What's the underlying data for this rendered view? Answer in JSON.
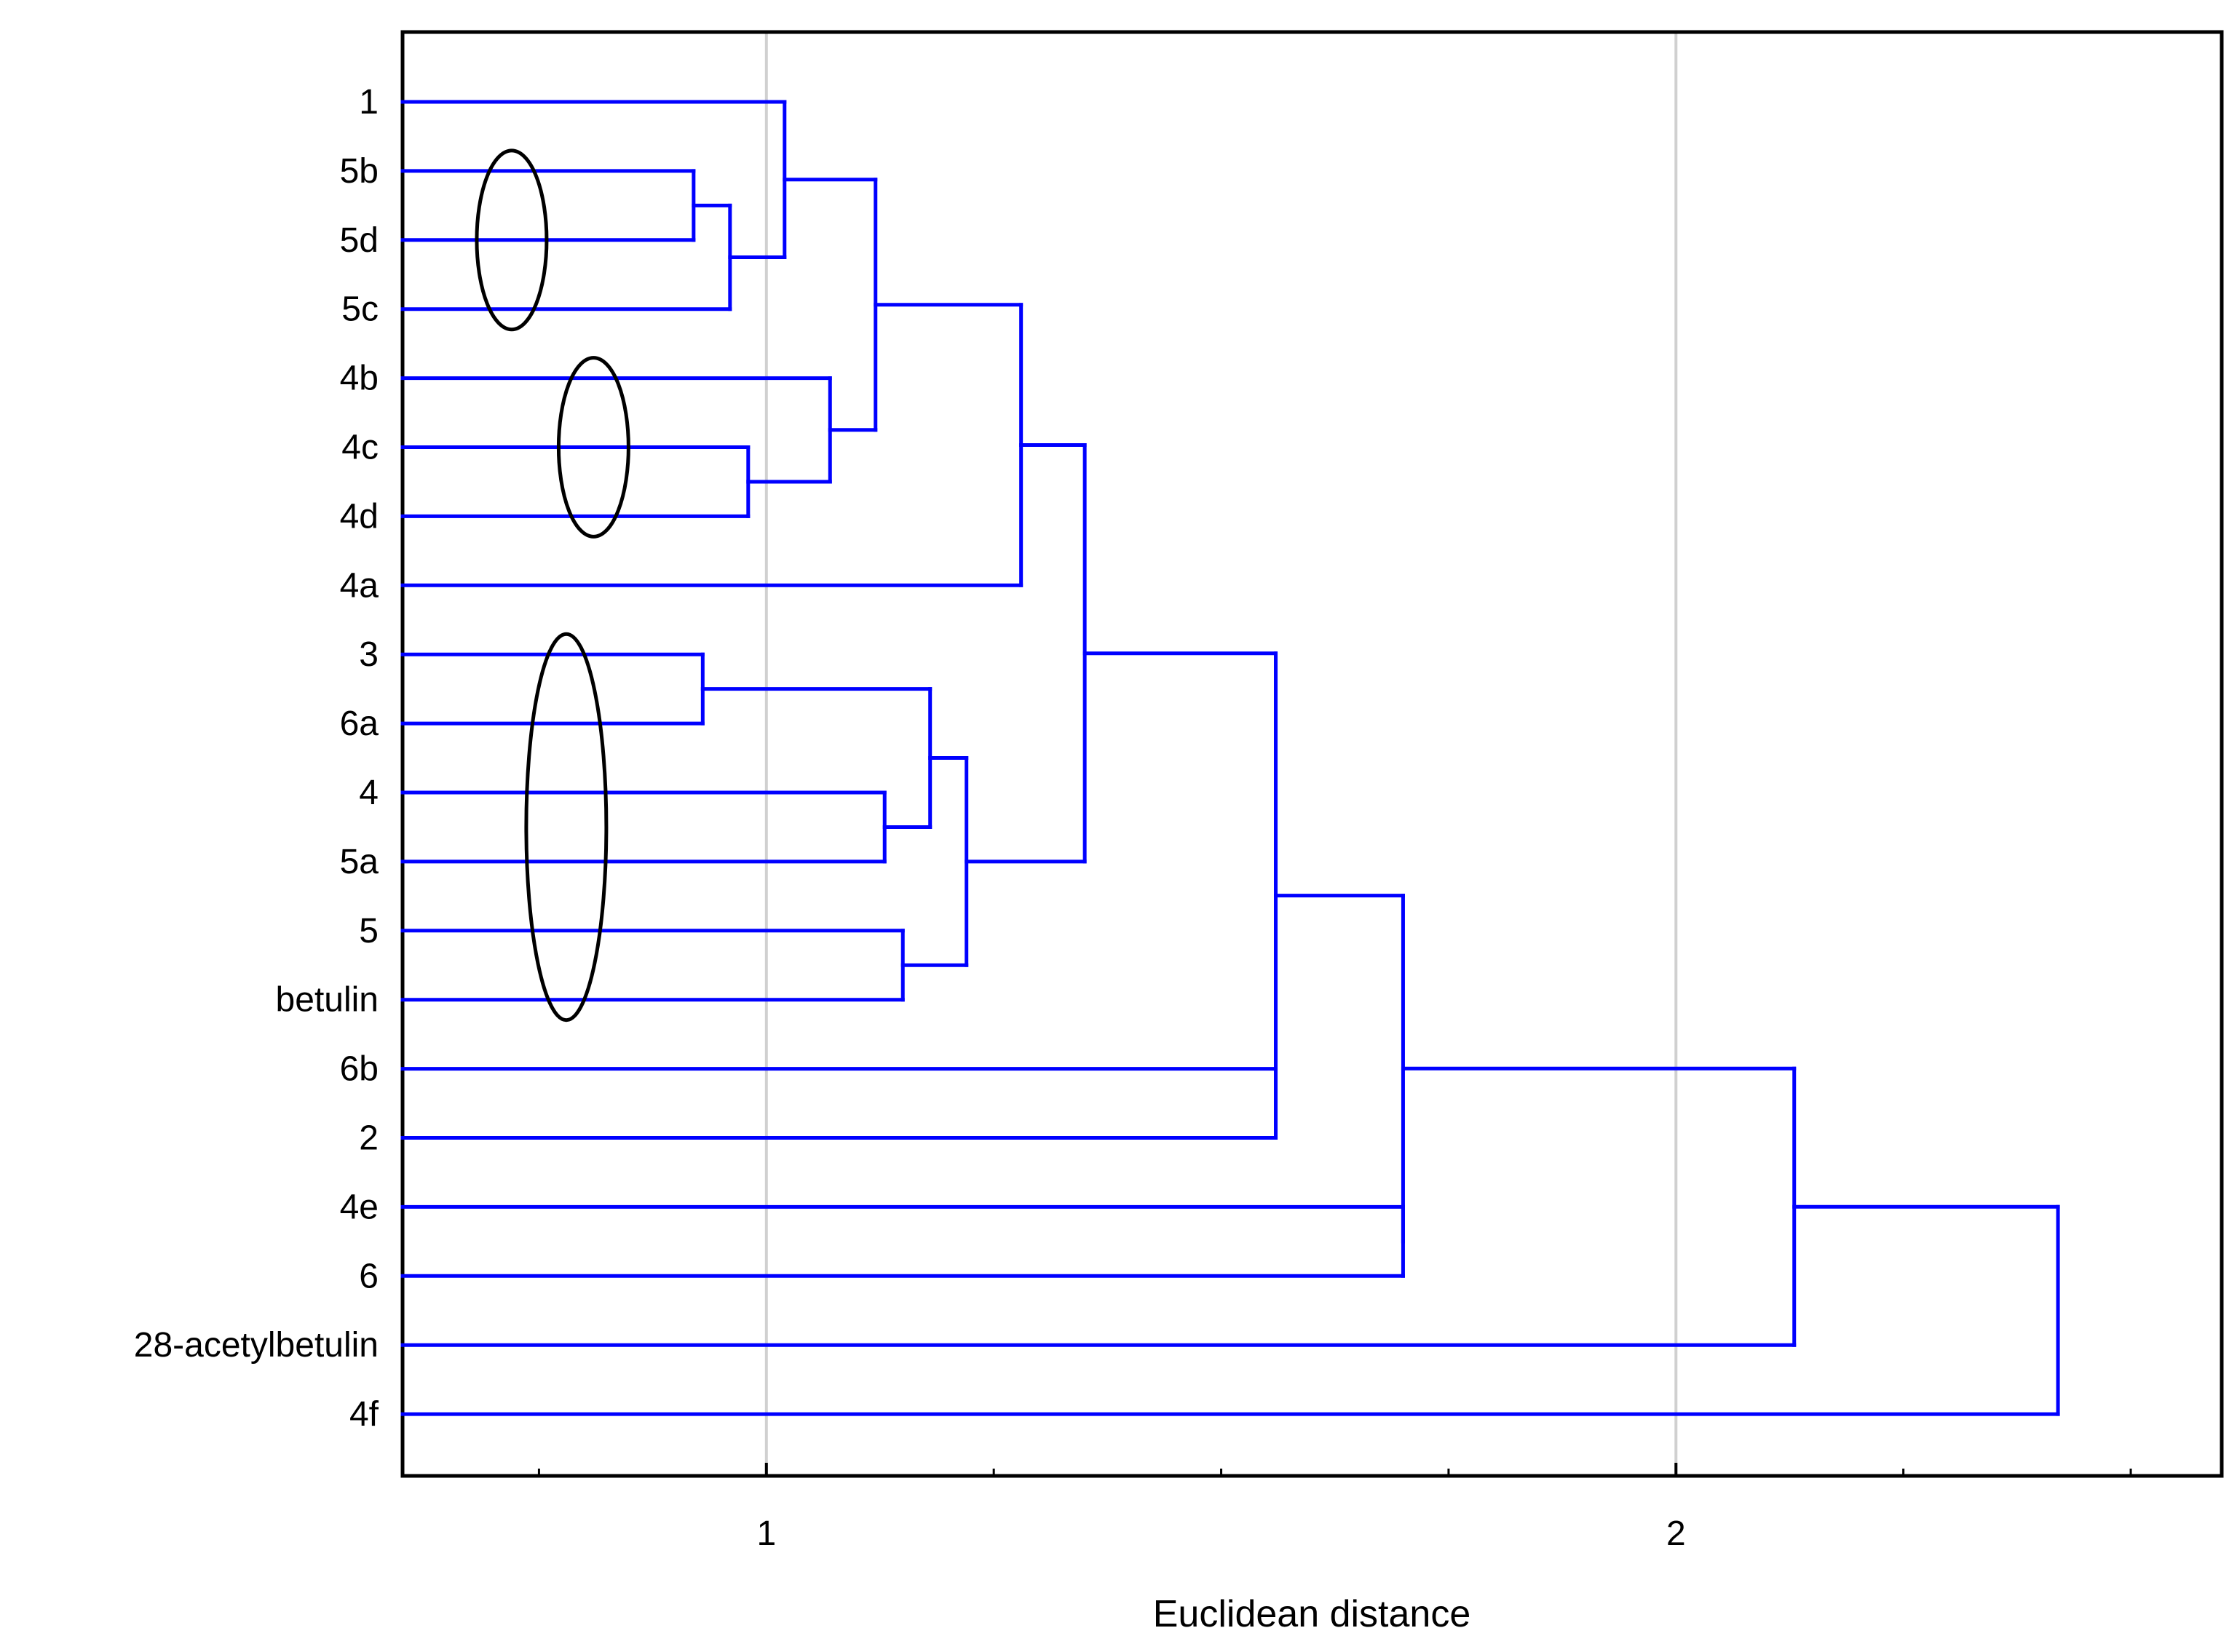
{
  "chart_data": {
    "type": "dendrogram",
    "orientation": "horizontal",
    "title": "",
    "xlabel": "Euclidean distance",
    "ylabel": "",
    "xlim": [
      0.6,
      2.6
    ],
    "xticks_major": [
      1,
      2
    ],
    "xticks_minor": [
      0.75,
      1.25,
      1.5,
      1.75,
      2.25,
      2.5
    ],
    "gridlines_x": [
      1,
      2
    ],
    "grid": true,
    "line_color": "#0000ff",
    "leaves": [
      "1",
      "5b",
      "5d",
      "5c",
      "4b",
      "4c",
      "4d",
      "4a",
      "3",
      "6a",
      "4",
      "5a",
      "5",
      "betulin",
      "6b",
      "2",
      "4e",
      "6",
      "28-acetylbetulin",
      "4f"
    ],
    "merges": [
      {
        "id": "c1",
        "children": [
          "5b",
          "5d"
        ],
        "distance": 0.92
      },
      {
        "id": "c2",
        "children": [
          "c1",
          "5c"
        ],
        "distance": 0.96
      },
      {
        "id": "c3",
        "children": [
          "1",
          "c2"
        ],
        "distance": 1.02
      },
      {
        "id": "c4",
        "children": [
          "4c",
          "4d"
        ],
        "distance": 0.98
      },
      {
        "id": "c5",
        "children": [
          "4b",
          "c4"
        ],
        "distance": 1.07
      },
      {
        "id": "c6",
        "children": [
          "c3",
          "c5"
        ],
        "distance": 1.12
      },
      {
        "id": "c7",
        "children": [
          "c6",
          "4a"
        ],
        "distance": 1.28
      },
      {
        "id": "c8",
        "children": [
          "3",
          "6a"
        ],
        "distance": 0.93
      },
      {
        "id": "c9",
        "children": [
          "4",
          "5a"
        ],
        "distance": 1.13
      },
      {
        "id": "c10",
        "children": [
          "c8",
          "c9"
        ],
        "distance": 1.18
      },
      {
        "id": "c11",
        "children": [
          "5",
          "betulin"
        ],
        "distance": 1.15
      },
      {
        "id": "c12",
        "children": [
          "c10",
          "c11"
        ],
        "distance": 1.22
      },
      {
        "id": "c13",
        "children": [
          "c7",
          "c12"
        ],
        "distance": 1.35
      },
      {
        "id": "c14",
        "children": [
          "c13",
          "6b",
          "2"
        ],
        "distance": 1.56
      },
      {
        "id": "c15",
        "children": [
          "4e",
          "6"
        ],
        "distance": 1.7
      },
      {
        "id": "c16",
        "children": [
          "c14",
          "c15"
        ],
        "distance": 1.7
      },
      {
        "id": "c17",
        "children": [
          "c16",
          "28-acetylbetulin"
        ],
        "distance": 2.13
      },
      {
        "id": "c18",
        "children": [
          "c17",
          "4f"
        ],
        "distance": 2.42
      }
    ],
    "annotations": [
      {
        "shape": "ellipse",
        "encloses": [
          "5b",
          "5d",
          "5c"
        ]
      },
      {
        "shape": "ellipse",
        "encloses": [
          "4b",
          "4c",
          "4d"
        ]
      },
      {
        "shape": "ellipse",
        "encloses": [
          "3",
          "6a",
          "4",
          "5a",
          "5",
          "betulin"
        ]
      }
    ]
  }
}
